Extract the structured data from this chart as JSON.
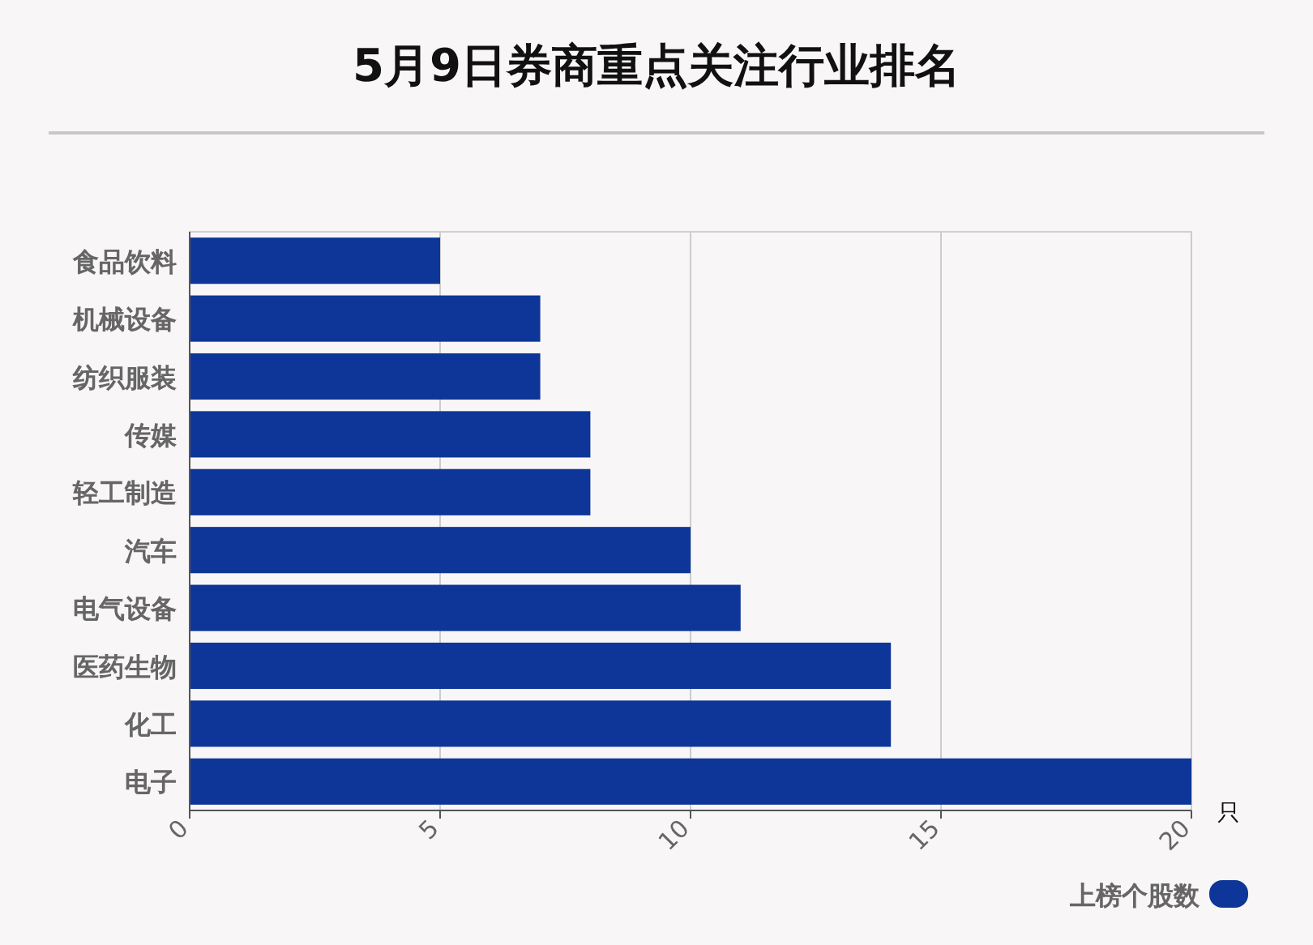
{
  "chart_data": {
    "type": "bar",
    "orientation": "horizontal",
    "title": "5月9日券商重点关注行业排名",
    "xlabel": "只",
    "categories": [
      "食品饮料",
      "机械设备",
      "纺织服装",
      "传媒",
      "轻工制造",
      "汽车",
      "电气设备",
      "医药生物",
      "化工",
      "电子"
    ],
    "series": [
      {
        "name": "上榜个股数",
        "color": "#0e3699",
        "values": [
          5,
          7,
          7,
          8,
          8,
          10,
          11,
          14,
          14,
          20
        ]
      }
    ],
    "xlim": [
      0,
      20
    ],
    "xticks": [
      0,
      5,
      10,
      15,
      20
    ],
    "grid": "x",
    "legend": "bottom right"
  }
}
